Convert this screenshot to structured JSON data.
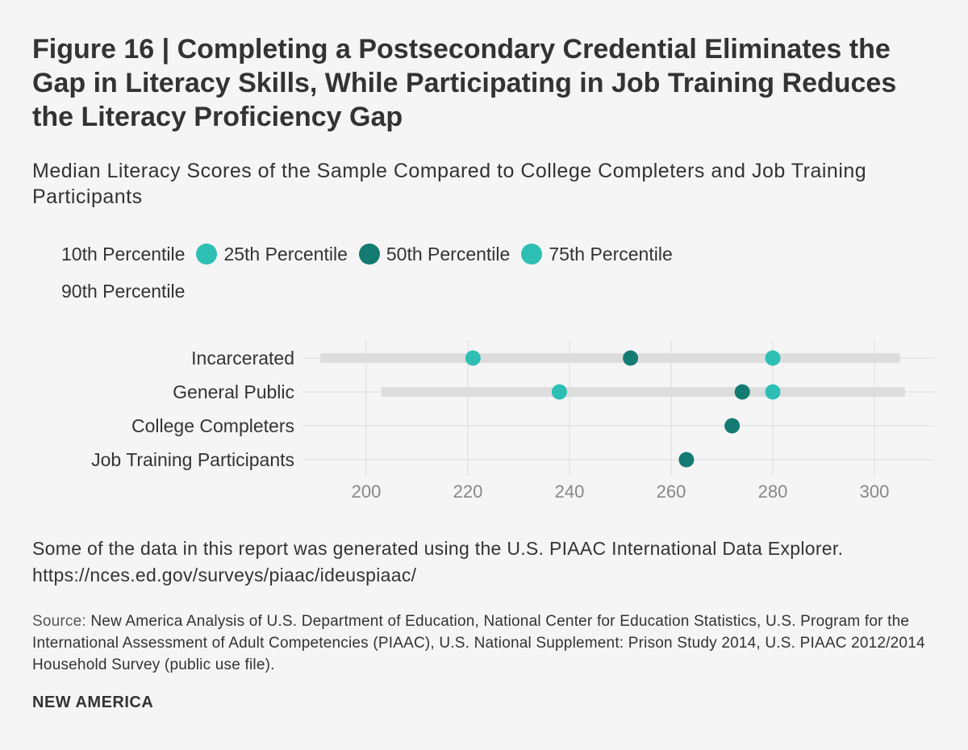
{
  "figure": {
    "title": "Figure 16 | Completing a Postsecondary Credential Eliminates the Gap in Literacy Skills, While Participating in Job Training Reduces the Literacy Proficiency Gap",
    "subtitle": "Median Literacy Scores of the Sample Compared to College Completers and Job Training Participants"
  },
  "legend": [
    {
      "label": "10th Percentile",
      "color": ""
    },
    {
      "label": "25th Percentile",
      "color": "#2ebfb4"
    },
    {
      "label": "50th Percentile",
      "color": "#137b72"
    },
    {
      "label": "75th Percentile",
      "color": "#2ebfb4"
    },
    {
      "label": "90th Percentile",
      "color": ""
    }
  ],
  "chart_data": {
    "type": "scatter",
    "title": "Median Literacy Scores of the Sample Compared to College Completers and Job Training Participants",
    "categories": [
      "Incarcerated",
      "General Public",
      "College Completers",
      "Job Training Participants"
    ],
    "x_ticks": [
      200,
      220,
      240,
      260,
      280,
      300
    ],
    "xlim": [
      190,
      312
    ],
    "grid": true,
    "legend_position": "top-left",
    "series": [
      {
        "name": "10th Percentile",
        "values": [
          191,
          203,
          null,
          null
        ]
      },
      {
        "name": "25th Percentile",
        "values": [
          221,
          238,
          null,
          null
        ]
      },
      {
        "name": "50th Percentile",
        "values": [
          252,
          274,
          272,
          263
        ]
      },
      {
        "name": "75th Percentile",
        "values": [
          280,
          280,
          null,
          null
        ]
      },
      {
        "name": "90th Percentile",
        "values": [
          305,
          306,
          null,
          null
        ]
      }
    ],
    "colors": {
      "p25": "#2ebfb4",
      "p50": "#137b72",
      "p75": "#2ebfb4",
      "range_bar": "#dddddd",
      "grid": "#dcdcdc",
      "tick_label": "#888888",
      "category_label": "#333333"
    }
  },
  "note": "Some of the data in this report was generated using the U.S. PIAAC International Data Explorer. https://nces.ed.gov/surveys/piaac/ideuspiaac/",
  "source": {
    "label": "Source:",
    "text": "New America Analysis of U.S. Department of Education, National Center for Education Statistics, U.S. Program for the International Assessment of Adult Competencies (PIAAC), U.S. National Supplement: Prison Study 2014, U.S. PIAAC 2012/2014 Household Survey (public use file)."
  },
  "brand": "NEW AMERICA"
}
